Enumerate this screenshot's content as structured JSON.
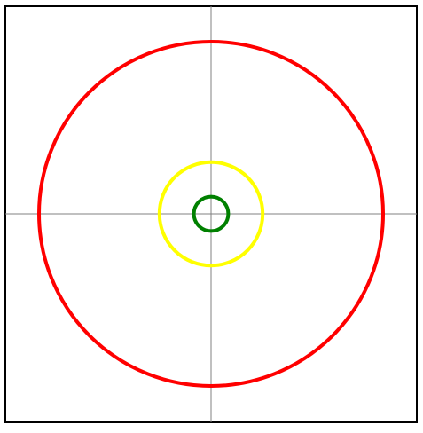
{
  "colors": {
    "background": "#ffffff",
    "frame": "#000000",
    "axes": "#808080",
    "outer_circle": "#ff0000",
    "middle_circle": "#ffff00",
    "inner_circle": "#008000"
  },
  "circles": [
    {
      "name": "outer-circle",
      "relative_radius": 1.0,
      "color_key": "outer_circle"
    },
    {
      "name": "middle-circle",
      "relative_radius": 0.3,
      "color_key": "middle_circle"
    },
    {
      "name": "inner-circle",
      "relative_radius": 0.1,
      "color_key": "inner_circle"
    }
  ],
  "axes_visible": true
}
